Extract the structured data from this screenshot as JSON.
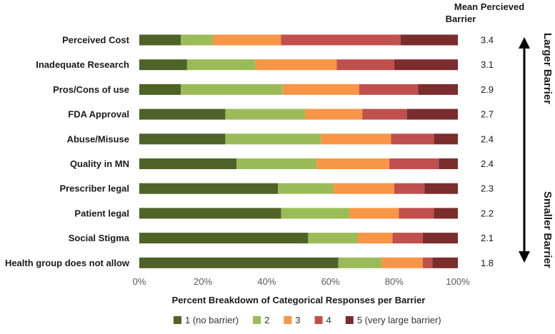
{
  "chart_data": {
    "type": "bar",
    "orientation": "horizontal",
    "stacked": true,
    "percent_stacked": true,
    "categories": [
      "Perceived Cost",
      "Inadequate Research",
      "Pros/Cons of use",
      "FDA Approval",
      "Abuse/Misuse",
      "Quality in MN",
      "Prescriber legal",
      "Patient legal",
      "Social Stigma",
      "Health group does not allow"
    ],
    "series": [
      {
        "name": "1 (no barrier)",
        "color": "#4f6228",
        "values": [
          13,
          15,
          13,
          27,
          27,
          30.5,
          43.5,
          44.5,
          53,
          62.5
        ]
      },
      {
        "name": "2",
        "color": "#9bbb59",
        "values": [
          10,
          21.5,
          32,
          25,
          30,
          25,
          17.5,
          21.5,
          15.5,
          13.5
        ]
      },
      {
        "name": "3",
        "color": "#f79646",
        "values": [
          21.5,
          25.5,
          24,
          18,
          22,
          23,
          19,
          15.5,
          11,
          13
        ]
      },
      {
        "name": "4",
        "color": "#c0504d",
        "values": [
          37.5,
          18,
          18.5,
          14,
          13.5,
          15.5,
          9.5,
          11,
          9.5,
          3
        ]
      },
      {
        "name": "5 (very large barrier)",
        "color": "#7b2c2c",
        "values": [
          18,
          20,
          12.5,
          16,
          7.5,
          6,
          10.5,
          7.5,
          11,
          8
        ]
      }
    ],
    "mean_values": [
      "3.4",
      "3.1",
      "2.9",
      "2.7",
      "2.4",
      "2.4",
      "2.3",
      "2.2",
      "2.1",
      "1.8"
    ],
    "mean_header": [
      "Mean Percieved",
      "Barrier"
    ],
    "side_labels": {
      "top": "Larger Barrier",
      "bottom": "Smaller Barrier"
    },
    "xlabel": "Percent Breakdown of Categorical Responses per Barrier",
    "xlim": [
      0,
      100
    ],
    "x_ticks": [
      "0%",
      "20%",
      "40%",
      "60%",
      "80%",
      "100%"
    ],
    "legend_position": "bottom",
    "grid": false
  }
}
